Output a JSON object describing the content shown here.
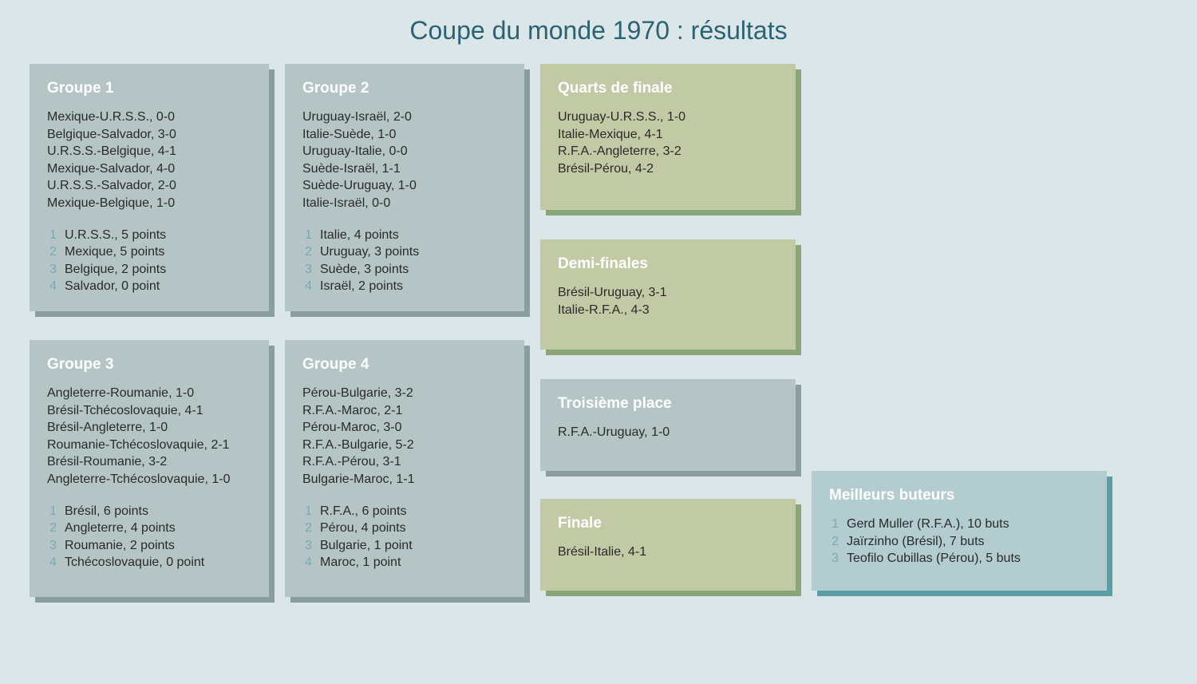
{
  "title": "Coupe du monde 1970 : résultats",
  "colors": {
    "background": "#dbe6e9",
    "title_color": "#2b6373",
    "group_bg": "#b5c4c4",
    "group_shadow": "#8a9ea2",
    "knockout_bg": "#c1caa5",
    "knockout_shadow": "#8ba57b",
    "scorer_bg": "#b3ccd0",
    "scorer_shadow": "#5c9da6",
    "rank_color": "#7aa8b3",
    "heading_color": "#ffffff",
    "text_color": "#2a2a2a"
  },
  "groups": [
    {
      "title": "Groupe 1",
      "matches": [
        "Mexique-U.R.S.S., 0-0",
        "Belgique-Salvador, 3-0",
        "U.R.S.S.-Belgique, 4-1",
        "Mexique-Salvador, 4-0",
        "U.R.S.S.-Salvador, 2-0",
        "Mexique-Belgique, 1-0"
      ],
      "standings": [
        {
          "rank": "1",
          "text": "U.R.S.S., 5 points"
        },
        {
          "rank": "2",
          "text": "Mexique, 5 points"
        },
        {
          "rank": "3",
          "text": "Belgique, 2 points"
        },
        {
          "rank": "4",
          "text": "Salvador, 0 point"
        }
      ]
    },
    {
      "title": "Groupe 2",
      "matches": [
        "Uruguay-Israël, 2-0",
        "Italie-Suède, 1-0",
        "Uruguay-Italie, 0-0",
        "Suède-Israël, 1-1",
        "Suède-Uruguay, 1-0",
        "Italie-Israël, 0-0"
      ],
      "standings": [
        {
          "rank": "1",
          "text": "Italie, 4 points"
        },
        {
          "rank": "2",
          "text": "Uruguay, 3 points"
        },
        {
          "rank": "3",
          "text": "Suède, 3 points"
        },
        {
          "rank": "4",
          "text": "Israël, 2 points"
        }
      ]
    },
    {
      "title": "Groupe 3",
      "matches": [
        "Angleterre-Roumanie, 1-0",
        "Brésil-Tchécoslovaquie, 4-1",
        "Brésil-Angleterre, 1-0",
        "Roumanie-Tchécoslovaquie, 2-1",
        "Brésil-Roumanie, 3-2",
        "Angleterre-Tchécoslovaquie, 1-0"
      ],
      "standings": [
        {
          "rank": "1",
          "text": "Brésil, 6 points"
        },
        {
          "rank": "2",
          "text": "Angleterre, 4 points"
        },
        {
          "rank": "3",
          "text": "Roumanie, 2 points"
        },
        {
          "rank": "4",
          "text": "Tchécoslovaquie, 0 point"
        }
      ]
    },
    {
      "title": "Groupe 4",
      "matches": [
        "Pérou-Bulgarie, 3-2",
        "R.F.A.-Maroc, 2-1",
        "Pérou-Maroc, 3-0",
        "R.F.A.-Bulgarie, 5-2",
        "R.F.A.-Pérou, 3-1",
        "Bulgarie-Maroc, 1-1"
      ],
      "standings": [
        {
          "rank": "1",
          "text": "R.F.A., 6 points"
        },
        {
          "rank": "2",
          "text": "Pérou, 4 points"
        },
        {
          "rank": "3",
          "text": "Bulgarie, 1 point"
        },
        {
          "rank": "4",
          "text": "Maroc, 1 point"
        }
      ]
    }
  ],
  "knockouts": {
    "quarterfinals": {
      "title": "Quarts de finale",
      "matches": [
        "Uruguay-U.R.S.S., 1-0",
        "Italie-Mexique, 4-1",
        "R.F.A.-Angleterre, 3-2",
        "Brésil-Pérou, 4-2"
      ]
    },
    "semifinals": {
      "title": "Demi-finales",
      "matches": [
        "Brésil-Uruguay, 3-1",
        "Italie-R.F.A., 4-3"
      ]
    },
    "third_place": {
      "title": "Troisième place",
      "matches": [
        "R.F.A.-Uruguay, 1-0"
      ]
    },
    "final": {
      "title": "Finale",
      "matches": [
        "Brésil-Italie, 4-1"
      ]
    }
  },
  "scorers": {
    "title": "Meilleurs buteurs",
    "list": [
      {
        "rank": "1",
        "text": "Gerd Muller (R.F.A.), 10 buts"
      },
      {
        "rank": "2",
        "text": "Jaïrzinho (Brésil), 7 buts"
      },
      {
        "rank": "3",
        "text": "Teofilo Cubillas (Pérou), 5 buts"
      }
    ]
  }
}
